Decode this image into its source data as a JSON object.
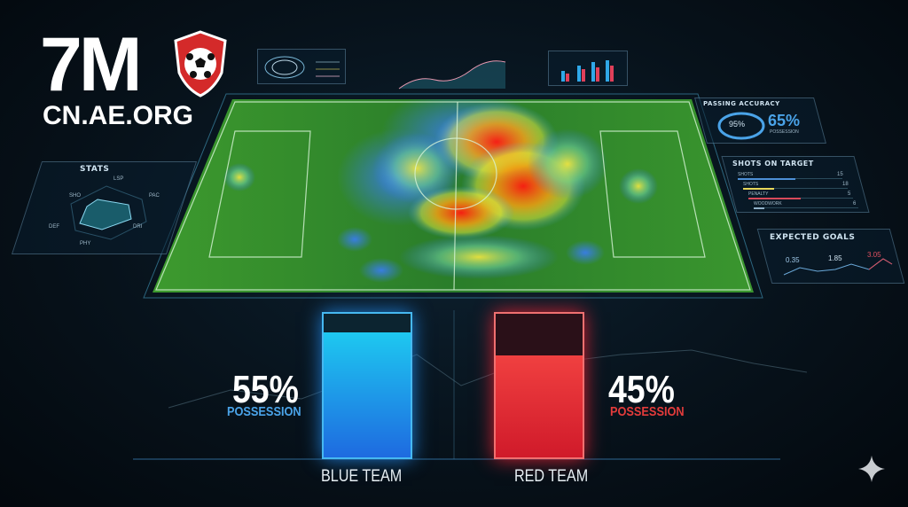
{
  "logo": {
    "brand": "7M",
    "url": "CN.AE.ORG"
  },
  "panels": {
    "stats": {
      "title": "STATS",
      "axes": [
        "LSP",
        "PAC",
        "DRI",
        "PHY",
        "DEF",
        "SHO"
      ]
    },
    "passing": {
      "title": "PASSING ACCURACY",
      "accuracy": "95%",
      "possession_value": "65%",
      "possession_label": "POSSESSION"
    },
    "shots": {
      "title": "SHOTS ON TARGET",
      "rows": [
        {
          "label": "SHOTS",
          "value": "15",
          "fill": 0.55,
          "color": "#4d8fd6"
        },
        {
          "label": "SHOTS",
          "value": "18",
          "fill": 0.3,
          "color": "#e8d65a"
        },
        {
          "label": "PENALTY",
          "value": "5",
          "fill": 0.5,
          "color": "#d84a5a"
        },
        {
          "label": "WOODWORK",
          "value": "6",
          "fill": 0.1,
          "color": "#8fb0c8"
        }
      ]
    },
    "xg": {
      "title": "EXPECTED GOALS",
      "values": [
        "0.35",
        "1.85",
        "3.05"
      ]
    }
  },
  "possession": {
    "blue": {
      "team": "BLUE TEAM",
      "value": "55%",
      "label": "POSSESSION",
      "fraction": 0.55,
      "color": "#1e9cf0"
    },
    "red": {
      "team": "RED TEAM",
      "value": "45%",
      "label": "POSSESSION",
      "fraction": 0.45,
      "color": "#f03a3a"
    }
  },
  "colors": {
    "pitch": "#2f8a2a",
    "accent_blue": "#4aa3e8",
    "accent_red": "#e23b3b"
  }
}
